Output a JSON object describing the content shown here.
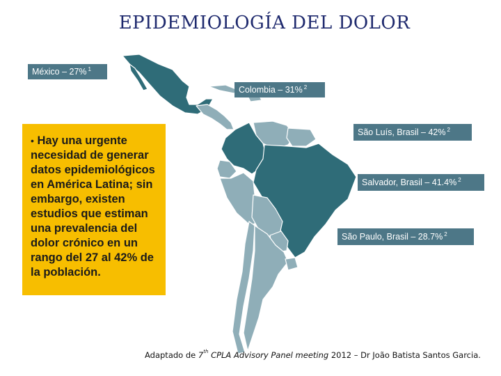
{
  "title": "EPIDEMIOLOGÍA DEL DOLOR",
  "callout": {
    "bullet": "•",
    "text": "Hay una urgente necesidad de generar datos epidemiológicos en América Latina; sin embargo, existen estudios que estiman una prevalencia del dolor crónico en un rango del 27 al 42% de la población."
  },
  "labels": [
    {
      "id": "mexico",
      "text": "México –  27%",
      "ref": "1"
    },
    {
      "id": "colombia",
      "text": "Colombia – 31%",
      "ref": "2"
    },
    {
      "id": "sao-luis",
      "text": "São Luís, Brasil – 42%",
      "ref": "2"
    },
    {
      "id": "salvador",
      "text": "Salvador, Brasil – 41.4%",
      "ref": "2"
    },
    {
      "id": "sao-paulo",
      "text": "São Paulo, Brasil – 28.7%",
      "ref": "2"
    }
  ],
  "footer": {
    "prefix": "Adaptado de",
    "ordinal": "7",
    "ordinal_suffix": "th",
    "event": "CPLA Advisory Panel meeting",
    "suffix": "2012 – Dr João Batista Santos Garcia."
  },
  "colors": {
    "highlight_country": "#2f6c78",
    "other_country": "#8faeb8",
    "label_bg": "#4d7787",
    "callout_bg": "#f7be00",
    "title": "#1f2a6e"
  }
}
